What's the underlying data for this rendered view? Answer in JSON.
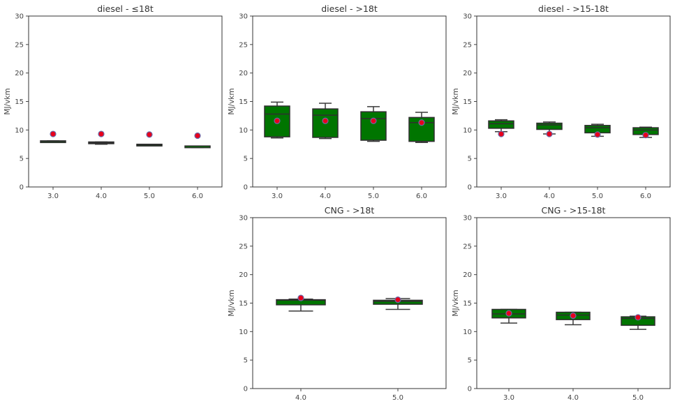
{
  "chart_data": [
    {
      "type": "box",
      "title": "diesel - ≤18t",
      "ylabel": "MJ/vkm",
      "ylim": [
        0,
        30
      ],
      "yticks": [
        "0",
        "5",
        "10",
        "15",
        "20",
        "25",
        "30"
      ],
      "categories": [
        "3.0",
        "4.0",
        "5.0",
        "6.0"
      ],
      "boxes": [
        {
          "whisker_low": 7.9,
          "q1": 7.9,
          "median": 8.0,
          "q3": 8.1,
          "whisker_high": 8.1,
          "mean": 9.3
        },
        {
          "whisker_low": 7.5,
          "q1": 7.6,
          "median": 7.75,
          "q3": 7.9,
          "whisker_high": 7.9,
          "mean": 9.3
        },
        {
          "whisker_low": 7.2,
          "q1": 7.25,
          "median": 7.4,
          "q3": 7.5,
          "whisker_high": 7.5,
          "mean": 9.2
        },
        {
          "whisker_low": 6.9,
          "q1": 7.1,
          "median": 7.2,
          "q3": 7.2,
          "whisker_high": 7.2,
          "mean": 9.0
        }
      ],
      "colors": {
        "box": "#007500",
        "mean_marker": "#e8001c",
        "mean_edge": "#6a6aa8"
      }
    },
    {
      "type": "box",
      "title": "diesel - >18t",
      "ylabel": "MJ/vkm",
      "ylim": [
        0,
        30
      ],
      "yticks": [
        "0",
        "5",
        "10",
        "15",
        "20",
        "25",
        "30"
      ],
      "categories": [
        "3.0",
        "4.0",
        "5.0",
        "6.0"
      ],
      "boxes": [
        {
          "whisker_low": 8.6,
          "q1": 8.8,
          "median": 12.8,
          "q3": 14.2,
          "whisker_high": 14.9,
          "mean": 11.6
        },
        {
          "whisker_low": 8.5,
          "q1": 8.7,
          "median": 12.6,
          "q3": 13.7,
          "whisker_high": 14.7,
          "mean": 11.6
        },
        {
          "whisker_low": 8.0,
          "q1": 8.2,
          "median": 12.0,
          "q3": 13.2,
          "whisker_high": 14.1,
          "mean": 11.6
        },
        {
          "whisker_low": 7.8,
          "q1": 8.0,
          "median": 11.3,
          "q3": 12.2,
          "whisker_high": 13.1,
          "mean": 11.3
        }
      ],
      "colors": {
        "box": "#007500",
        "mean_marker": "#e8001c",
        "mean_edge": "#6a6aa8"
      }
    },
    {
      "type": "box",
      "title": "diesel - >15-18t",
      "ylabel": "MJ/vkm",
      "ylim": [
        0,
        30
      ],
      "yticks": [
        "0",
        "5",
        "10",
        "15",
        "20",
        "25",
        "30"
      ],
      "categories": [
        "3.0",
        "4.0",
        "5.0",
        "6.0"
      ],
      "boxes": [
        {
          "whisker_low": 9.7,
          "q1": 10.3,
          "median": 11.1,
          "q3": 11.6,
          "whisker_high": 11.8,
          "mean": 9.3
        },
        {
          "whisker_low": 9.3,
          "q1": 10.1,
          "median": 10.9,
          "q3": 11.2,
          "whisker_high": 11.4,
          "mean": 9.3
        },
        {
          "whisker_low": 8.9,
          "q1": 9.5,
          "median": 10.4,
          "q3": 10.8,
          "whisker_high": 11.0,
          "mean": 9.2
        },
        {
          "whisker_low": 8.7,
          "q1": 9.2,
          "median": 10.0,
          "q3": 10.4,
          "whisker_high": 10.5,
          "mean": 9.1
        }
      ],
      "colors": {
        "box": "#007500",
        "mean_marker": "#e8001c",
        "mean_edge": "#6a6aa8"
      }
    },
    {
      "type": "box",
      "title": "CNG - >18t",
      "ylabel": "MJ/vkm",
      "ylim": [
        0,
        30
      ],
      "yticks": [
        "0",
        "5",
        "10",
        "15",
        "20",
        "25",
        "30"
      ],
      "categories": [
        "4.0",
        "5.0"
      ],
      "boxes": [
        {
          "whisker_low": 13.6,
          "q1": 14.7,
          "median": 15.5,
          "q3": 15.6,
          "whisker_high": 15.7,
          "mean": 15.9
        },
        {
          "whisker_low": 13.9,
          "q1": 14.8,
          "median": 15.3,
          "q3": 15.5,
          "whisker_high": 15.8,
          "mean": 15.6
        }
      ],
      "colors": {
        "box": "#007500",
        "mean_marker": "#e8001c",
        "mean_edge": "#6a6aa8"
      }
    },
    {
      "type": "box",
      "title": "CNG - >15-18t",
      "ylabel": "MJ/vkm",
      "ylim": [
        0,
        30
      ],
      "yticks": [
        "0",
        "5",
        "10",
        "15",
        "20",
        "25",
        "30"
      ],
      "categories": [
        "3.0",
        "4.0",
        "5.0"
      ],
      "boxes": [
        {
          "whisker_low": 11.5,
          "q1": 12.4,
          "median": 13.1,
          "q3": 13.9,
          "whisker_high": 13.9,
          "mean": 13.2
        },
        {
          "whisker_low": 11.2,
          "q1": 12.1,
          "median": 12.9,
          "q3": 13.4,
          "whisker_high": 13.4,
          "mean": 12.8
        },
        {
          "whisker_low": 10.4,
          "q1": 11.1,
          "median": 12.3,
          "q3": 12.6,
          "whisker_high": 12.7,
          "mean": 12.5
        }
      ],
      "colors": {
        "box": "#007500",
        "mean_marker": "#e8001c",
        "mean_edge": "#6a6aa8"
      }
    }
  ]
}
